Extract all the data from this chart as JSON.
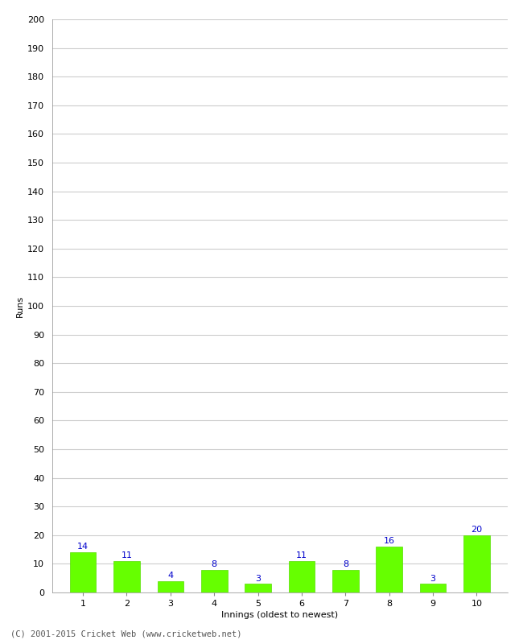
{
  "innings": [
    1,
    2,
    3,
    4,
    5,
    6,
    7,
    8,
    9,
    10
  ],
  "runs": [
    14,
    11,
    4,
    8,
    3,
    11,
    8,
    16,
    3,
    20
  ],
  "bar_color": "#66ff00",
  "bar_edge_color": "#55dd00",
  "label_color": "#0000cc",
  "ylabel": "Runs",
  "xlabel": "Innings (oldest to newest)",
  "ylim": [
    0,
    200
  ],
  "ytick_step": 10,
  "background_color": "#ffffff",
  "grid_color": "#cccccc",
  "footer": "(C) 2001-2015 Cricket Web (www.cricketweb.net)"
}
